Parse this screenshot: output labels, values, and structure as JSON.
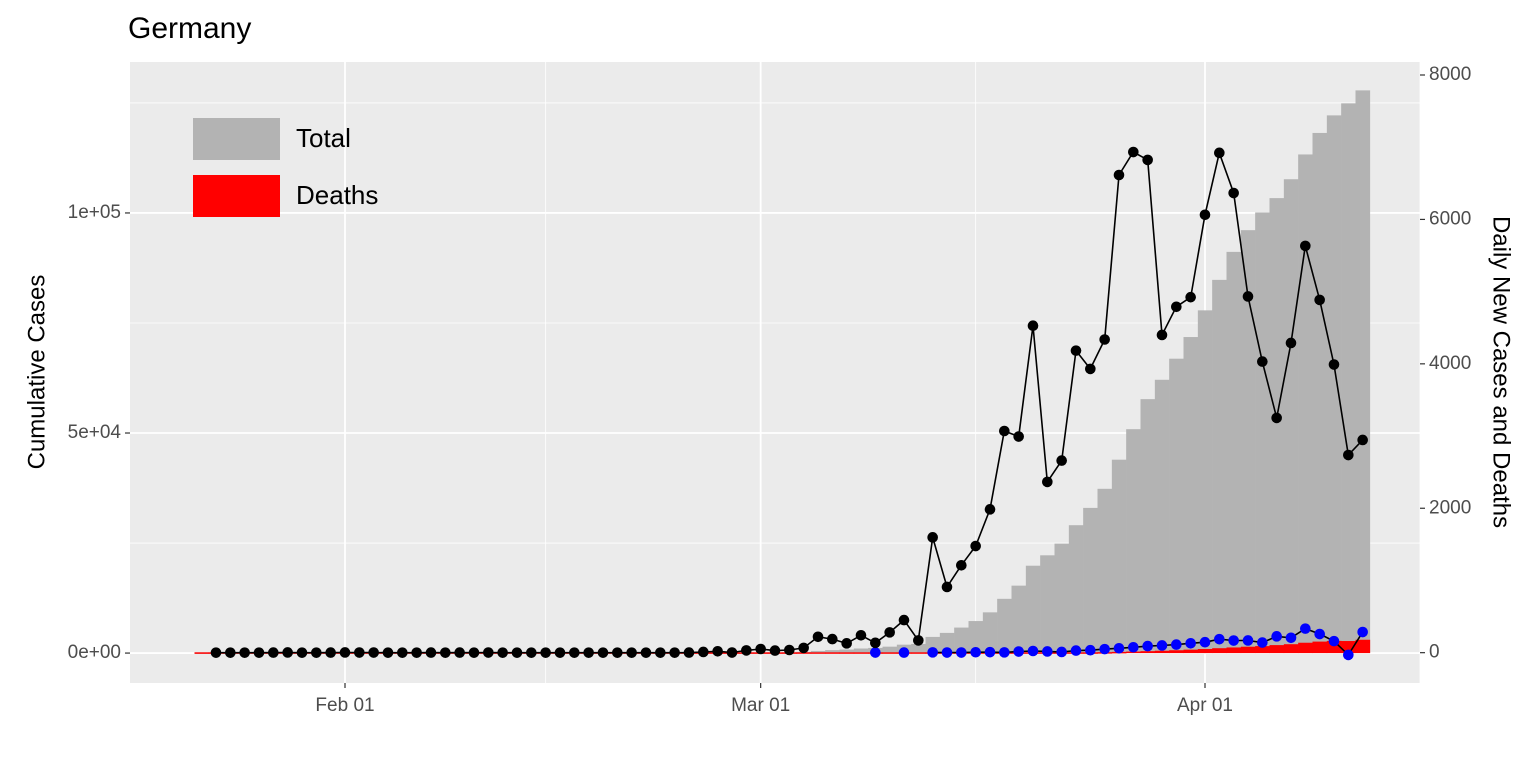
{
  "chart_data": {
    "type": "combo",
    "title": "Germany",
    "y_label": "Cumulative Cases",
    "y2_label": "Daily New Cases and Deaths",
    "x": [
      "Jan 22",
      "Jan 23",
      "Jan 24",
      "Jan 25",
      "Jan 26",
      "Jan 27",
      "Jan 28",
      "Jan 29",
      "Jan 30",
      "Jan 31",
      "Feb 01",
      "Feb 02",
      "Feb 03",
      "Feb 04",
      "Feb 05",
      "Feb 06",
      "Feb 07",
      "Feb 08",
      "Feb 09",
      "Feb 10",
      "Feb 11",
      "Feb 12",
      "Feb 13",
      "Feb 14",
      "Feb 15",
      "Feb 16",
      "Feb 17",
      "Feb 18",
      "Feb 19",
      "Feb 20",
      "Feb 21",
      "Feb 22",
      "Feb 23",
      "Feb 24",
      "Feb 25",
      "Feb 26",
      "Feb 27",
      "Feb 28",
      "Feb 29",
      "Mar 01",
      "Mar 02",
      "Mar 03",
      "Mar 04",
      "Mar 05",
      "Mar 06",
      "Mar 07",
      "Mar 08",
      "Mar 09",
      "Mar 10",
      "Mar 11",
      "Mar 12",
      "Mar 13",
      "Mar 14",
      "Mar 15",
      "Mar 16",
      "Mar 17",
      "Mar 18",
      "Mar 19",
      "Mar 20",
      "Mar 21",
      "Mar 22",
      "Mar 23",
      "Mar 24",
      "Mar 25",
      "Mar 26",
      "Mar 27",
      "Mar 28",
      "Mar 29",
      "Mar 30",
      "Mar 31",
      "Apr 01",
      "Apr 02",
      "Apr 03",
      "Apr 04",
      "Apr 05",
      "Apr 06",
      "Apr 07",
      "Apr 08",
      "Apr 09",
      "Apr 10",
      "Apr 11",
      "Apr 12"
    ],
    "series": [
      {
        "name": "Total",
        "type": "bar",
        "axis": "y",
        "color": "#b3b3b3",
        "values": [
          0,
          0,
          0,
          0,
          0,
          1,
          4,
          4,
          4,
          5,
          8,
          10,
          12,
          12,
          12,
          12,
          13,
          13,
          14,
          14,
          16,
          16,
          16,
          16,
          16,
          16,
          16,
          16,
          16,
          16,
          16,
          16,
          16,
          16,
          17,
          27,
          46,
          48,
          79,
          130,
          159,
          196,
          262,
          482,
          670,
          799,
          1040,
          1176,
          1457,
          1908,
          2078,
          3675,
          4585,
          5795,
          7272,
          9257,
          12327,
          15320,
          19848,
          22213,
          24873,
          29056,
          32986,
          37323,
          43938,
          50871,
          57695,
          62095,
          66885,
          71808,
          77872,
          84794,
          91159,
          96092,
          100123,
          103374,
          107663,
          113296,
          118181,
          122171,
          124908,
          127854
        ]
      },
      {
        "name": "Deaths",
        "type": "bar",
        "axis": "y",
        "color": "#ff0000",
        "values": [
          0,
          0,
          0,
          0,
          0,
          0,
          0,
          0,
          0,
          0,
          0,
          0,
          0,
          0,
          0,
          0,
          0,
          0,
          0,
          0,
          0,
          0,
          0,
          0,
          0,
          0,
          0,
          0,
          0,
          0,
          0,
          0,
          0,
          0,
          0,
          0,
          0,
          0,
          0,
          0,
          0,
          0,
          0,
          0,
          0,
          0,
          0,
          2,
          2,
          3,
          3,
          7,
          9,
          11,
          17,
          24,
          28,
          44,
          67,
          84,
          94,
          123,
          157,
          206,
          267,
          342,
          433,
          533,
          645,
          775,
          920,
          1107,
          1275,
          1444,
          1584,
          1810,
          2016,
          2349,
          2607,
          2767,
          2736,
          3022
        ]
      },
      {
        "type": "line",
        "axis": "y2",
        "color": "#000000",
        "values": [
          null,
          0,
          0,
          0,
          0,
          1,
          3,
          0,
          0,
          1,
          3,
          2,
          2,
          0,
          0,
          0,
          1,
          0,
          1,
          0,
          2,
          0,
          0,
          0,
          0,
          0,
          0,
          0,
          0,
          0,
          0,
          0,
          0,
          0,
          1,
          10,
          19,
          2,
          31,
          51,
          29,
          37,
          66,
          220,
          188,
          129,
          241,
          136,
          281,
          451,
          170,
          1597,
          910,
          1210,
          1477,
          1985,
          3070,
          2993,
          4528,
          2365,
          2660,
          4183,
          3930,
          4337,
          6615,
          6933,
          6824,
          4400,
          4790,
          4923,
          6064,
          6922,
          6365,
          4933,
          4031,
          3251,
          4289,
          5633,
          4885,
          3990,
          2737,
          2946
        ]
      },
      {
        "type": "scatter",
        "axis": "y2",
        "color": "#0000ff",
        "values": [
          null,
          null,
          null,
          null,
          null,
          null,
          null,
          null,
          null,
          null,
          null,
          null,
          null,
          null,
          null,
          null,
          null,
          null,
          null,
          null,
          null,
          null,
          null,
          null,
          null,
          null,
          null,
          null,
          null,
          null,
          null,
          null,
          null,
          null,
          null,
          null,
          null,
          null,
          null,
          null,
          null,
          null,
          null,
          null,
          null,
          null,
          null,
          2,
          null,
          1,
          null,
          4,
          2,
          2,
          6,
          7,
          4,
          16,
          23,
          17,
          10,
          29,
          34,
          49,
          61,
          75,
          91,
          100,
          112,
          130,
          145,
          187,
          168,
          169,
          140,
          226,
          206,
          333,
          258,
          160,
          -31,
          286
        ]
      }
    ],
    "xlim": [
      "Jan 17",
      "Apr 16"
    ],
    "xticks": [
      "Feb 01",
      "Mar 01",
      "Apr 01"
    ],
    "xminor": [
      "Feb 15",
      "Mar 16",
      "Apr 16"
    ],
    "ylim": [
      -6800,
      134300
    ],
    "yticks": [
      {
        "value": 0,
        "label": "0e+00"
      },
      {
        "value": 50000,
        "label": "5e+04"
      },
      {
        "value": 100000,
        "label": "1e+05"
      }
    ],
    "yminor": [
      25000,
      75000,
      125000
    ],
    "y2lim": [
      -420,
      8180
    ],
    "y2ticks": [
      0,
      2000,
      4000,
      6000,
      8000
    ],
    "grid": true,
    "legend": "top-left"
  }
}
